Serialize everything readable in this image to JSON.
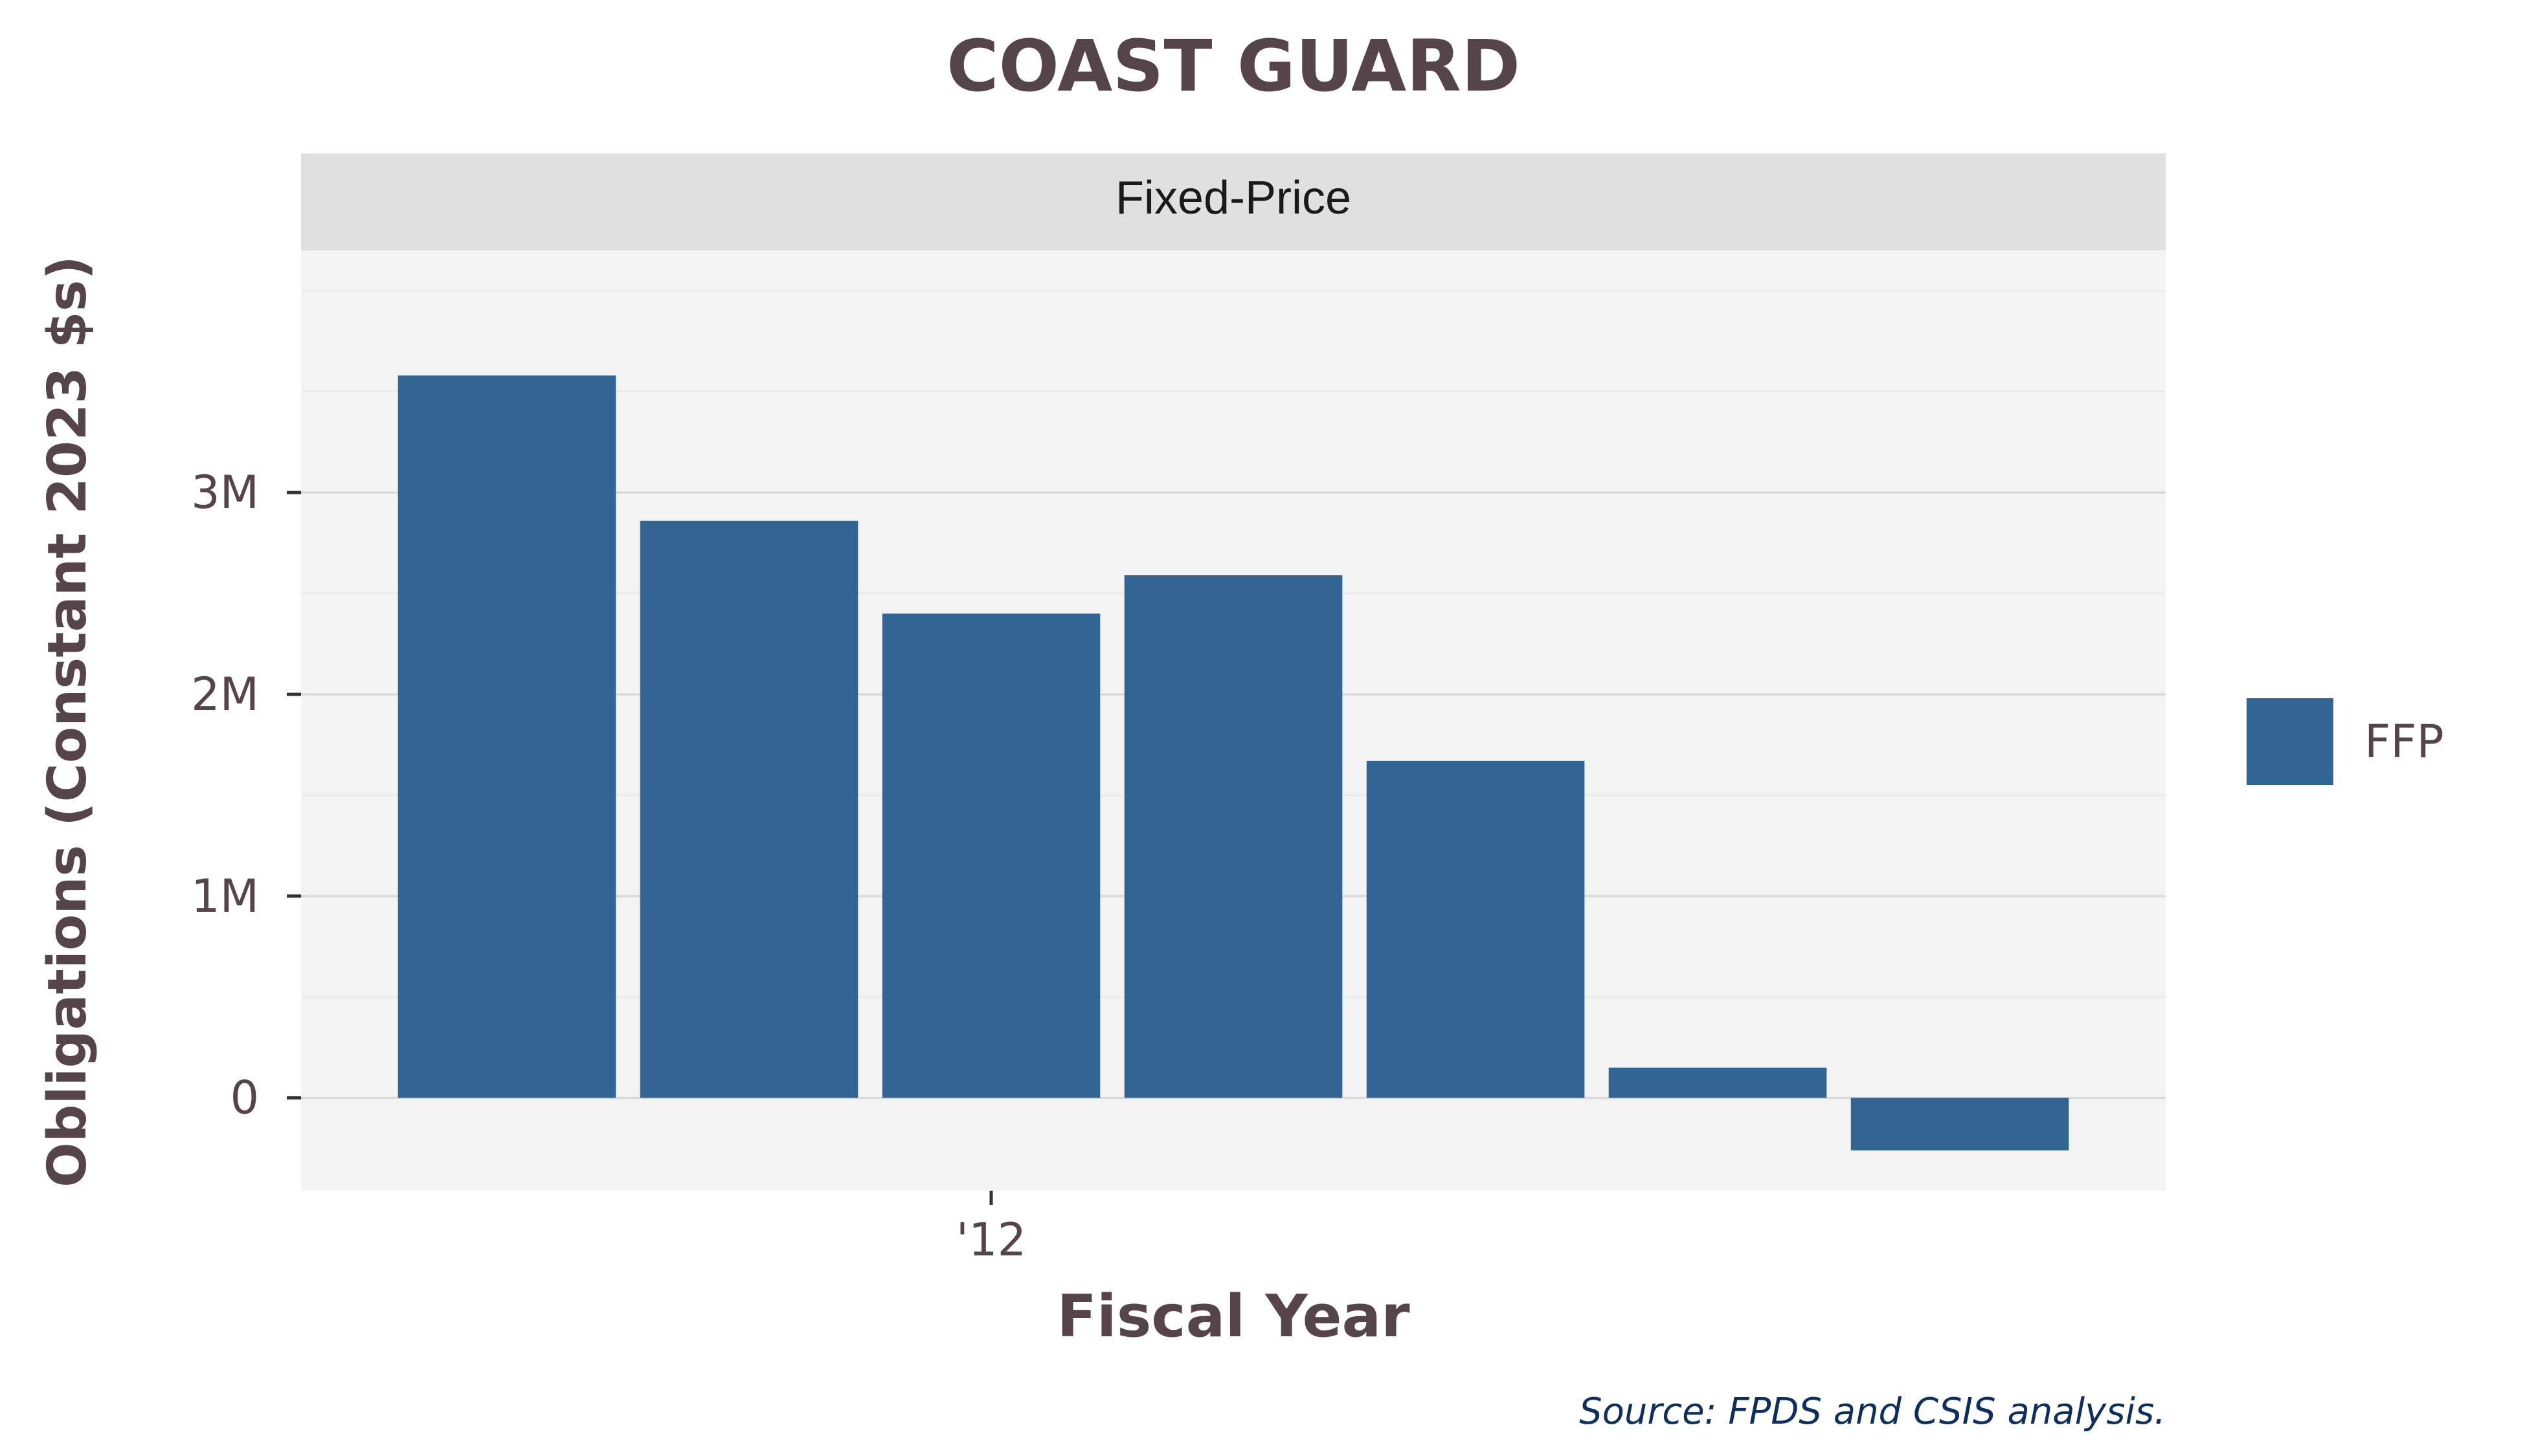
{
  "chart_data": {
    "type": "bar",
    "title": "COAST GUARD",
    "facet_label": "Fixed-Price",
    "xlabel": "Fiscal Year",
    "ylabel": "Obligations (Constant 2023 $s)",
    "x_tick_labels": [
      "'12"
    ],
    "y_ticks": [
      {
        "value": 0,
        "label": "0"
      },
      {
        "value": 1000000,
        "label": "1M"
      },
      {
        "value": 2000000,
        "label": "2M"
      },
      {
        "value": 3000000,
        "label": "3M"
      }
    ],
    "ylim": [
      -460000,
      4200000
    ],
    "grid": true,
    "legend": {
      "position": "right",
      "entries": [
        "FFP"
      ]
    },
    "series": [
      {
        "name": "FFP",
        "color": "#336594",
        "values": [
          3580000,
          2860000,
          2400000,
          2590000,
          1670000,
          150000,
          -260000
        ]
      }
    ],
    "source": "Source: FPDS and CSIS analysis.",
    "colors": {
      "panel_bg": "#f3f3f3",
      "strip_bg": "#e0e0e0",
      "grid_major": "#d6d6d6",
      "grid_minor": "#e6e6e6",
      "title_text": "#554449",
      "tick_text": "#554449",
      "source_text": "#0e2f5e"
    }
  }
}
